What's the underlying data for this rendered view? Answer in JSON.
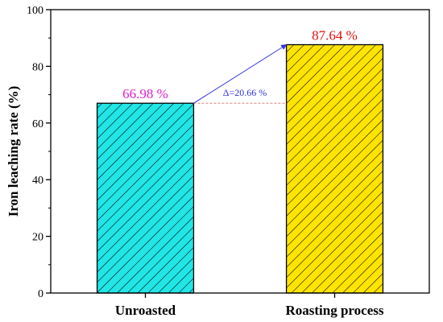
{
  "chart_data": {
    "type": "bar",
    "categories": [
      "Unroasted",
      "Roasting process"
    ],
    "values": [
      66.98,
      87.64
    ],
    "value_labels": [
      "66.98 %",
      "87.64 %"
    ],
    "colors": [
      "#22E5E5",
      "#FFE400"
    ],
    "value_label_colors": [
      "#E020D0",
      "#E01010"
    ],
    "hatch": "diagonal lines",
    "ylabel": "Iron leaching rate (%)",
    "xlabel": "",
    "ylim": [
      0,
      100
    ],
    "yticks": [
      0,
      20,
      40,
      60,
      80,
      100
    ],
    "grid": false,
    "annotation": {
      "text": "Δ=20.66 %",
      "from_value": 66.98,
      "to_value": 87.64,
      "arrow_color": "#3030E0",
      "reference_line_color": "#E08080"
    }
  }
}
